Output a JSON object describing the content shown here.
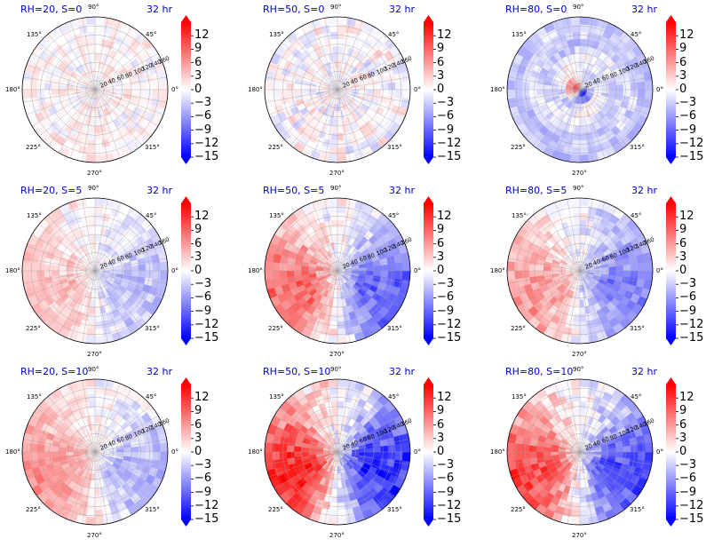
{
  "chart_data": {
    "type": "heatmap",
    "projection": "polar",
    "layout": "3x3 grid",
    "colormap": "bwr",
    "colors": {
      "negative": "#0000ff",
      "zero": "#ffffff",
      "positive": "#ff0000",
      "title": "#0000cc"
    },
    "grid": true,
    "colorbar": {
      "ticks": [
        "12",
        "9",
        "6",
        "3",
        "0",
        "−3",
        "−6",
        "−9",
        "−12",
        "−15"
      ],
      "range": [
        -15,
        15
      ],
      "extend": "both"
    },
    "angular_ticks": [
      "0°",
      "45°",
      "90°",
      "135°",
      "180°",
      "225°",
      "270°",
      "315°"
    ],
    "radial_ticks": [
      "20",
      "40",
      "60",
      "80",
      "100",
      "120",
      "140",
      "160"
    ],
    "panels": [
      {
        "title": "RH=20, S=0",
        "time": "32 hr",
        "pattern": "noise",
        "amplitude": 0.12,
        "bias": 0.03
      },
      {
        "title": "RH=50, S=0",
        "time": "32 hr",
        "pattern": "noise",
        "amplitude": 0.16,
        "bias": 0.0
      },
      {
        "title": "RH=80, S=0",
        "time": "32 hr",
        "pattern": "spiral",
        "amplitude": 0.55,
        "bias": -0.25
      },
      {
        "title": "RH=20, S=5",
        "time": "32 hr",
        "pattern": "dipole",
        "amplitude": 0.25,
        "bias": 0.0
      },
      {
        "title": "RH=50, S=5",
        "time": "32 hr",
        "pattern": "dipole",
        "amplitude": 0.6,
        "bias": 0.0
      },
      {
        "title": "RH=80, S=5",
        "time": "32 hr",
        "pattern": "dipole",
        "amplitude": 0.45,
        "bias": -0.05
      },
      {
        "title": "RH=20, S=10",
        "time": "32 hr",
        "pattern": "dipole",
        "amplitude": 0.35,
        "bias": 0.05
      },
      {
        "title": "RH=50, S=10",
        "time": "32 hr",
        "pattern": "dipole",
        "amplitude": 0.85,
        "bias": 0.0
      },
      {
        "title": "RH=80, S=10",
        "time": "32 hr",
        "pattern": "dipole",
        "amplitude": 0.7,
        "bias": 0.0
      }
    ]
  }
}
